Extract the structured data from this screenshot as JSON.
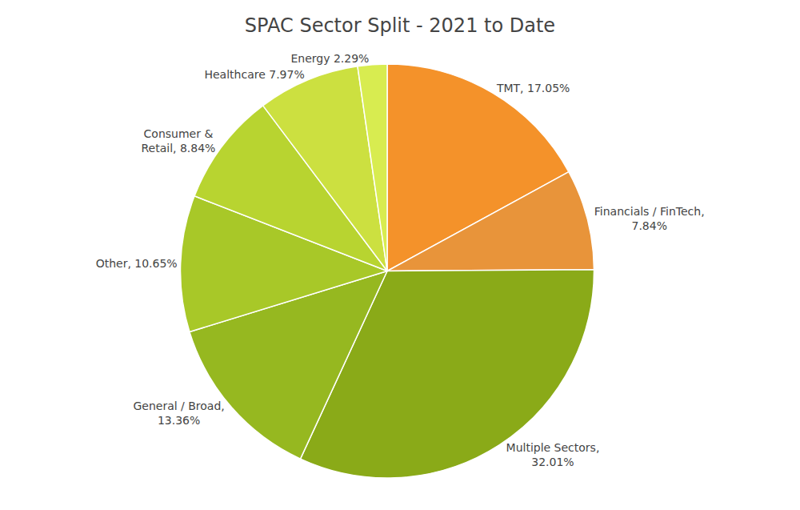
{
  "chart_data": {
    "type": "pie",
    "title": "SPAC Sector Split - 2021 to Date",
    "categories": [
      "TMT",
      "Financials / FinTech",
      "Multiple Sectors",
      "General / Broad",
      "Other",
      "Consumer &\nRetail",
      "Healthcare",
      "Energy"
    ],
    "values": [
      17.05,
      7.84,
      32.01,
      13.36,
      10.65,
      8.84,
      7.97,
      2.29
    ],
    "value_labels": [
      "TMT, 17.05%",
      "Financials / FinTech,\n7.84%",
      "Multiple Sectors,\n32.01%",
      "General / Broad,\n13.36%",
      "Other, 10.65%",
      "Consumer &\nRetail, 8.84%",
      "Healthcare 7.97%",
      "Energy 2.29%"
    ],
    "colors": [
      "#f4922a",
      "#e8943a",
      "#8aaa18",
      "#96b820",
      "#a8c828",
      "#b8d430",
      "#cce040",
      "#d8ec50"
    ],
    "data_labels": true
  }
}
